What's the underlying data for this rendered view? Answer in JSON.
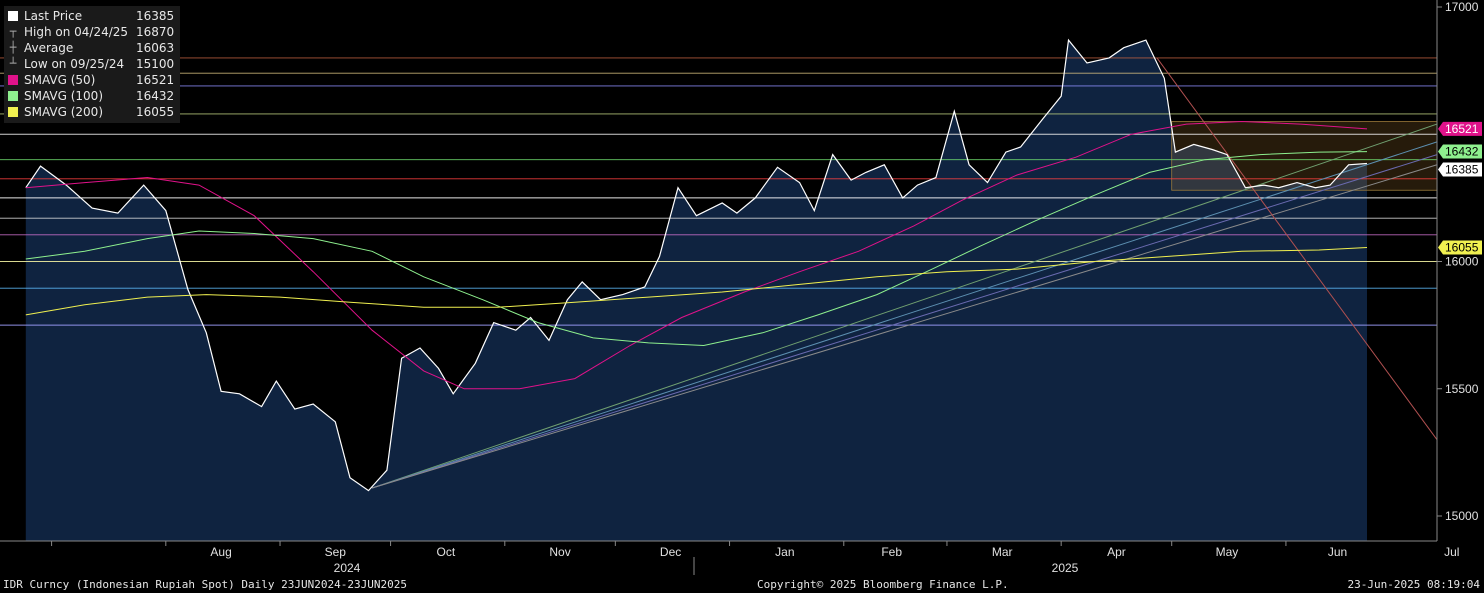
{
  "legend": {
    "last": {
      "label": "Last Price",
      "value": "16385"
    },
    "high": {
      "label": "High on 04/24/25",
      "value": "16870"
    },
    "avg": {
      "label": "Average",
      "value": "16063"
    },
    "low": {
      "label": "Low on 09/25/24",
      "value": "15100"
    },
    "sma50": {
      "label": "SMAVG (50)",
      "value": "16521"
    },
    "sma100": {
      "label": "SMAVG (100)",
      "value": "16432"
    },
    "sma200": {
      "label": "SMAVG (200)",
      "value": "16055"
    }
  },
  "footer": {
    "left": "IDR Curncy (Indonesian Rupiah Spot)  Daily 23JUN2024-23JUN2025",
    "center": "Copyright© 2025 Bloomberg Finance L.P.",
    "right": "23-Jun-2025 08:19:04"
  },
  "colors": {
    "background": "#000000",
    "area_fill": "#0f2340",
    "price": "#ffffff",
    "sma50": "#e0128a",
    "sma100": "#8ef08e",
    "sma200": "#f0f050"
  },
  "chart_data": {
    "type": "line",
    "title": "IDR Curncy (Indonesian Rupiah Spot)",
    "ylim": [
      14900,
      17000
    ],
    "y_ticks": [
      15000,
      15500,
      16000,
      17000
    ],
    "months": [
      "Aug",
      "Sep",
      "Oct",
      "Nov",
      "Dec",
      "Jan",
      "Feb",
      "Mar",
      "Apr",
      "May",
      "Jun",
      "Jul"
    ],
    "years": [
      "2024",
      "2025"
    ],
    "price_tags": {
      "last": "16385",
      "sma50": "16521",
      "sma100": "16432",
      "sma200": "16055"
    },
    "series": [
      {
        "name": "Last Price",
        "color": "#ffffff",
        "points": [
          [
            "2024-06-24",
            16290
          ],
          [
            "2024-06-28",
            16375
          ],
          [
            "2024-07-05",
            16300
          ],
          [
            "2024-07-12",
            16210
          ],
          [
            "2024-07-19",
            16190
          ],
          [
            "2024-07-26",
            16300
          ],
          [
            "2024-08-01",
            16200
          ],
          [
            "2024-08-07",
            15890
          ],
          [
            "2024-08-12",
            15720
          ],
          [
            "2024-08-16",
            15490
          ],
          [
            "2024-08-21",
            15480
          ],
          [
            "2024-08-27",
            15430
          ],
          [
            "2024-08-31",
            15530
          ],
          [
            "2024-09-05",
            15420
          ],
          [
            "2024-09-10",
            15440
          ],
          [
            "2024-09-16",
            15370
          ],
          [
            "2024-09-20",
            15150
          ],
          [
            "2024-09-25",
            15100
          ],
          [
            "2024-09-30",
            15180
          ],
          [
            "2024-10-04",
            15620
          ],
          [
            "2024-10-09",
            15660
          ],
          [
            "2024-10-14",
            15580
          ],
          [
            "2024-10-18",
            15480
          ],
          [
            "2024-10-24",
            15600
          ],
          [
            "2024-10-29",
            15760
          ],
          [
            "2024-11-04",
            15730
          ],
          [
            "2024-11-08",
            15780
          ],
          [
            "2024-11-13",
            15690
          ],
          [
            "2024-11-18",
            15850
          ],
          [
            "2024-11-22",
            15920
          ],
          [
            "2024-11-27",
            15850
          ],
          [
            "2024-12-03",
            15870
          ],
          [
            "2024-12-09",
            15900
          ],
          [
            "2024-12-13",
            16020
          ],
          [
            "2024-12-18",
            16290
          ],
          [
            "2024-12-23",
            16180
          ],
          [
            "2024-12-30",
            16230
          ],
          [
            "2025-01-03",
            16190
          ],
          [
            "2025-01-08",
            16250
          ],
          [
            "2025-01-14",
            16370
          ],
          [
            "2025-01-20",
            16310
          ],
          [
            "2025-01-24",
            16200
          ],
          [
            "2025-01-29",
            16420
          ],
          [
            "2025-02-03",
            16320
          ],
          [
            "2025-02-07",
            16350
          ],
          [
            "2025-02-12",
            16380
          ],
          [
            "2025-02-17",
            16250
          ],
          [
            "2025-02-21",
            16300
          ],
          [
            "2025-02-26",
            16330
          ],
          [
            "2025-03-03",
            16590
          ],
          [
            "2025-03-07",
            16380
          ],
          [
            "2025-03-12",
            16310
          ],
          [
            "2025-03-17",
            16430
          ],
          [
            "2025-03-21",
            16450
          ],
          [
            "2025-03-27",
            16560
          ],
          [
            "2025-04-01",
            16650
          ],
          [
            "2025-04-03",
            16870
          ],
          [
            "2025-04-08",
            16780
          ],
          [
            "2025-04-14",
            16800
          ],
          [
            "2025-04-18",
            16840
          ],
          [
            "2025-04-24",
            16870
          ],
          [
            "2025-04-29",
            16720
          ],
          [
            "2025-05-02",
            16430
          ],
          [
            "2025-05-07",
            16460
          ],
          [
            "2025-05-12",
            16440
          ],
          [
            "2025-05-16",
            16420
          ],
          [
            "2025-05-21",
            16290
          ],
          [
            "2025-05-26",
            16300
          ],
          [
            "2025-05-30",
            16290
          ],
          [
            "2025-06-04",
            16310
          ],
          [
            "2025-06-09",
            16290
          ],
          [
            "2025-06-13",
            16300
          ],
          [
            "2025-06-18",
            16380
          ],
          [
            "2025-06-23",
            16385
          ]
        ]
      },
      {
        "name": "SMAVG (50)",
        "color": "#e0128a",
        "points": [
          [
            "2024-06-24",
            16290
          ],
          [
            "2024-07-10",
            16310
          ],
          [
            "2024-07-27",
            16330
          ],
          [
            "2024-08-10",
            16300
          ],
          [
            "2024-08-25",
            16180
          ],
          [
            "2024-09-10",
            15960
          ],
          [
            "2024-09-26",
            15730
          ],
          [
            "2024-10-10",
            15570
          ],
          [
            "2024-10-21",
            15500
          ],
          [
            "2024-11-05",
            15500
          ],
          [
            "2024-11-20",
            15540
          ],
          [
            "2024-12-05",
            15670
          ],
          [
            "2024-12-19",
            15780
          ],
          [
            "2025-01-05",
            15880
          ],
          [
            "2025-01-20",
            15960
          ],
          [
            "2025-02-05",
            16040
          ],
          [
            "2025-02-20",
            16140
          ],
          [
            "2025-03-05",
            16240
          ],
          [
            "2025-03-20",
            16340
          ],
          [
            "2025-04-05",
            16410
          ],
          [
            "2025-04-20",
            16500
          ],
          [
            "2025-05-05",
            16540
          ],
          [
            "2025-05-20",
            16550
          ],
          [
            "2025-06-05",
            16540
          ],
          [
            "2025-06-23",
            16521
          ]
        ]
      },
      {
        "name": "SMAVG (100)",
        "color": "#8ef08e",
        "points": [
          [
            "2024-06-24",
            16010
          ],
          [
            "2024-07-10",
            16040
          ],
          [
            "2024-07-27",
            16090
          ],
          [
            "2024-08-10",
            16120
          ],
          [
            "2024-08-25",
            16110
          ],
          [
            "2024-09-10",
            16090
          ],
          [
            "2024-09-26",
            16040
          ],
          [
            "2024-10-10",
            15940
          ],
          [
            "2024-10-26",
            15850
          ],
          [
            "2024-11-10",
            15760
          ],
          [
            "2024-11-25",
            15700
          ],
          [
            "2024-12-10",
            15680
          ],
          [
            "2024-12-25",
            15670
          ],
          [
            "2025-01-10",
            15720
          ],
          [
            "2025-01-25",
            15790
          ],
          [
            "2025-02-10",
            15870
          ],
          [
            "2025-02-25",
            15970
          ],
          [
            "2025-03-10",
            16060
          ],
          [
            "2025-03-25",
            16160
          ],
          [
            "2025-04-10",
            16260
          ],
          [
            "2025-04-25",
            16350
          ],
          [
            "2025-05-10",
            16400
          ],
          [
            "2025-05-25",
            16420
          ],
          [
            "2025-06-10",
            16430
          ],
          [
            "2025-06-23",
            16432
          ]
        ]
      },
      {
        "name": "SMAVG (200)",
        "color": "#f0f050",
        "points": [
          [
            "2024-06-24",
            15790
          ],
          [
            "2024-07-10",
            15830
          ],
          [
            "2024-07-27",
            15860
          ],
          [
            "2024-08-12",
            15870
          ],
          [
            "2024-09-01",
            15860
          ],
          [
            "2024-09-20",
            15840
          ],
          [
            "2024-10-10",
            15820
          ],
          [
            "2024-10-30",
            15820
          ],
          [
            "2024-11-20",
            15840
          ],
          [
            "2024-12-10",
            15860
          ],
          [
            "2024-12-30",
            15880
          ],
          [
            "2025-01-20",
            15910
          ],
          [
            "2025-02-10",
            15940
          ],
          [
            "2025-03-01",
            15960
          ],
          [
            "2025-03-20",
            15970
          ],
          [
            "2025-04-10",
            16000
          ],
          [
            "2025-04-30",
            16020
          ],
          [
            "2025-05-20",
            16040
          ],
          [
            "2025-06-10",
            16045
          ],
          [
            "2025-06-23",
            16055
          ]
        ]
      }
    ]
  }
}
